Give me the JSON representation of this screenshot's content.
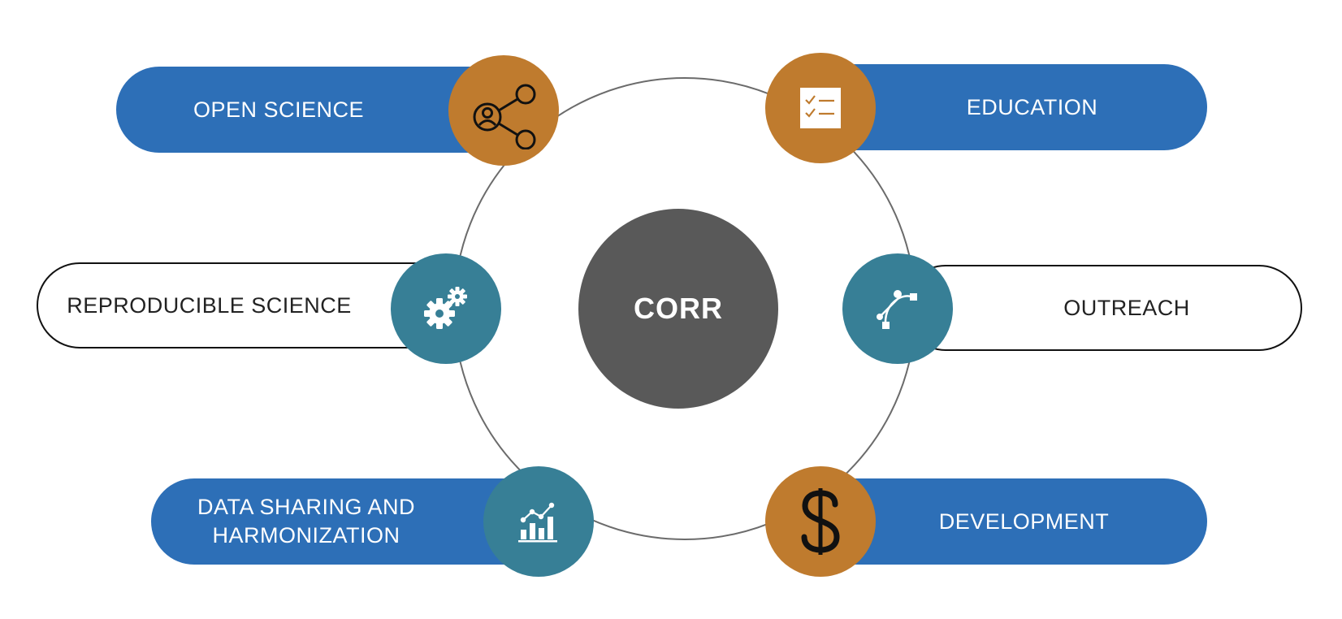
{
  "center": {
    "label": "CORR"
  },
  "nodes": [
    {
      "id": "open-science",
      "label": "OPEN SCIENCE",
      "icon": "share-network-icon",
      "style": "blue",
      "badge_color": "#bf7b2e"
    },
    {
      "id": "education",
      "label": "EDUCATION",
      "icon": "checklist-icon",
      "style": "blue",
      "badge_color": "#bf7b2e"
    },
    {
      "id": "reproducible-science",
      "label": "REPRODUCIBLE SCIENCE",
      "icon": "gears-icon",
      "style": "outline",
      "badge_color": "#377f96"
    },
    {
      "id": "outreach",
      "label": "OUTREACH",
      "icon": "vector-path-icon",
      "style": "outline",
      "badge_color": "#377f96"
    },
    {
      "id": "data-sharing",
      "label_lines": [
        "DATA SHARING AND",
        "HARMONIZATION"
      ],
      "icon": "bar-chart-icon",
      "style": "blue",
      "badge_color": "#377f96"
    },
    {
      "id": "development",
      "label": "DEVELOPMENT",
      "icon": "dollar-icon",
      "style": "blue",
      "badge_color": "#bf7b2e"
    }
  ],
  "colors": {
    "pill_blue": "#2d6fb7",
    "badge_orange": "#bf7b2e",
    "badge_teal": "#377f96",
    "center_gray": "#595959",
    "ring_gray": "#6b6b6b"
  }
}
